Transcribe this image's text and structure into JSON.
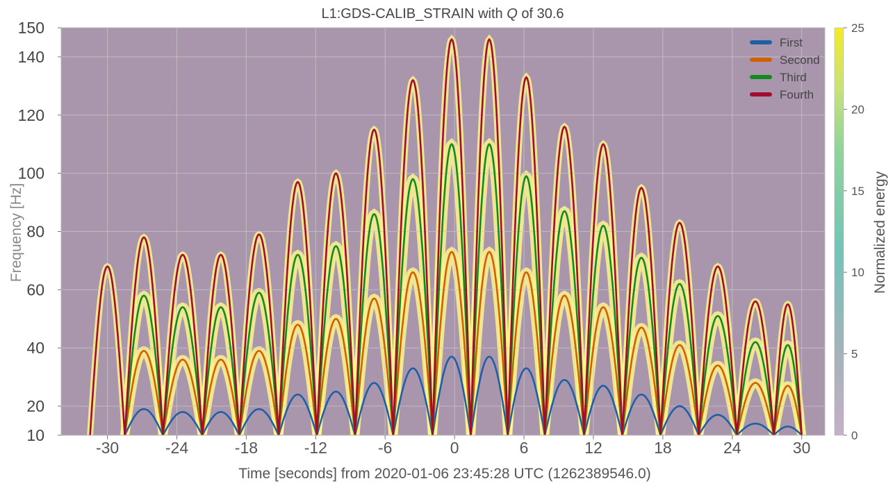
{
  "chart_data": {
    "type": "line",
    "title_prefix": "L1:GDS-CALIB_STRAIN with ",
    "title_q": "Q",
    "title_suffix": " of 30.6",
    "xlabel": "Time [seconds] from 2020-01-06 23:45:28 UTC (1262389546.0)",
    "ylabel": "Frequency [Hz]",
    "colorbar_label": "Normalized energy",
    "xlim": [
      -34,
      32
    ],
    "ylim": [
      10,
      150
    ],
    "x_ticks": [
      "-30",
      "-24",
      "-18",
      "-12",
      "-6",
      "0",
      "6",
      "12",
      "18",
      "24",
      "30"
    ],
    "x_tick_values": [
      -30,
      -24,
      -18,
      -12,
      -6,
      0,
      6,
      12,
      18,
      24,
      30
    ],
    "y_ticks": [
      "10",
      "20",
      "40",
      "60",
      "80",
      "100",
      "120",
      "140",
      "150"
    ],
    "y_tick_values": [
      10,
      20,
      40,
      60,
      80,
      100,
      120,
      140,
      150
    ],
    "colorbar_range": [
      0,
      25
    ],
    "colorbar_ticks": [
      "0",
      "5",
      "10",
      "15",
      "20",
      "25"
    ],
    "colorbar_tick_values": [
      0,
      5,
      10,
      15,
      20,
      25
    ],
    "colors": {
      "background": "#a996ad",
      "grid": "#c8c8c8",
      "hot": "#fdf38c"
    },
    "arch_boundaries": [
      -31.5,
      -28.5,
      -25.2,
      -21.8,
      -18.6,
      -15.2,
      -11.9,
      -8.6,
      -5.3,
      -1.9,
      1.4,
      4.6,
      7.8,
      11.2,
      14.5,
      17.8,
      21.1,
      24.4,
      27.6,
      30.0
    ],
    "legend": {
      "position": "top-right"
    },
    "series": [
      {
        "name": "First",
        "color": "#1f5fa6",
        "peaks": [
          null,
          19,
          18,
          18,
          19,
          24,
          25,
          28,
          33,
          37,
          37,
          33,
          29,
          27,
          24,
          20,
          17,
          14,
          13
        ]
      },
      {
        "name": "Second",
        "color": "#d45f00",
        "peaks": [
          null,
          39,
          36,
          36,
          39,
          48,
          50,
          57,
          66,
          73,
          73,
          66,
          58,
          54,
          47,
          41,
          34,
          28,
          27
        ]
      },
      {
        "name": "Third",
        "color": "#128a20",
        "peaks": [
          null,
          58,
          54,
          54,
          59,
          72,
          75,
          86,
          98,
          110,
          110,
          99,
          87,
          82,
          71,
          62,
          51,
          42,
          41
        ]
      },
      {
        "name": "Fourth",
        "color": "#a00d2f",
        "peaks": [
          68,
          78,
          72,
          72,
          79,
          97,
          100,
          115,
          132,
          146,
          146,
          133,
          116,
          110,
          95,
          83,
          68,
          56,
          55
        ]
      }
    ]
  }
}
